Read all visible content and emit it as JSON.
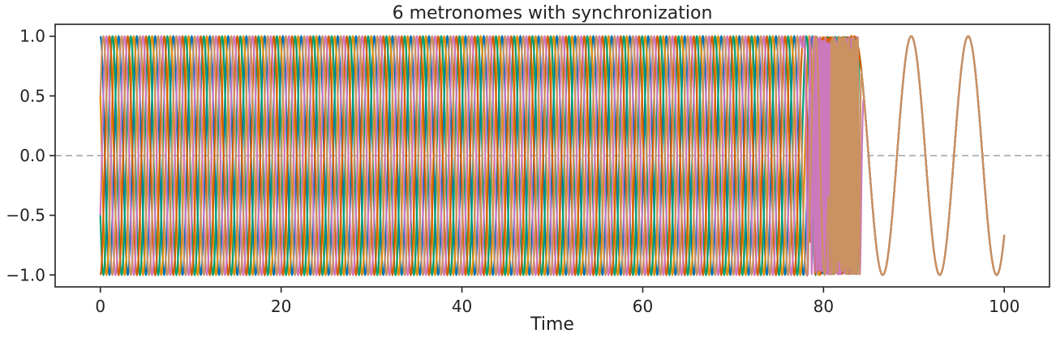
{
  "chart_data": {
    "type": "line",
    "title": "6 metronomes with synchronization",
    "xlabel": "Time",
    "ylabel": "",
    "xlim": [
      -5,
      105
    ],
    "ylim": [
      -1.1,
      1.1
    ],
    "xticks": [
      0,
      20,
      40,
      60,
      80,
      100
    ],
    "xtick_labels": [
      "0",
      "20",
      "40",
      "60",
      "80",
      "100"
    ],
    "yticks": [
      -1.0,
      -0.5,
      0.0,
      0.5,
      1.0
    ],
    "ytick_labels": [
      "−1.0",
      "−0.5",
      "0.0",
      "0.5",
      "1.0"
    ],
    "grid": false,
    "legend": "none",
    "reference_line": {
      "y": 0.0,
      "style": "dashed",
      "color": "#b8b8b8"
    },
    "sync_period": 6.3,
    "final_phase": -1.5,
    "series": [
      {
        "color": "#0173b2",
        "start_value": 0.0,
        "start_phase": 0.0,
        "period": 2.02,
        "sync_start": 79.0,
        "sync_end": 83.5
      },
      {
        "color": "#de8f05",
        "start_value": 0.87,
        "start_phase": 1.047,
        "period": 2.02,
        "sync_start": 79.5,
        "sync_end": 83.8
      },
      {
        "color": "#029e73",
        "start_value": 0.87,
        "start_phase": 2.094,
        "period": 2.02,
        "sync_start": 80.0,
        "sync_end": 84.0
      },
      {
        "color": "#d55e00",
        "start_value": 0.0,
        "start_phase": 3.142,
        "period": 2.02,
        "sync_start": 78.5,
        "sync_end": 83.2
      },
      {
        "color": "#cc78bc",
        "start_value": -0.87,
        "start_phase": 4.189,
        "period": 2.02,
        "sync_start": 77.5,
        "sync_end": 84.5
      },
      {
        "color": "#ca9161",
        "start_value": -0.87,
        "start_phase": 5.236,
        "period": 2.02,
        "sync_start": 80.5,
        "sync_end": 84.2
      }
    ]
  }
}
